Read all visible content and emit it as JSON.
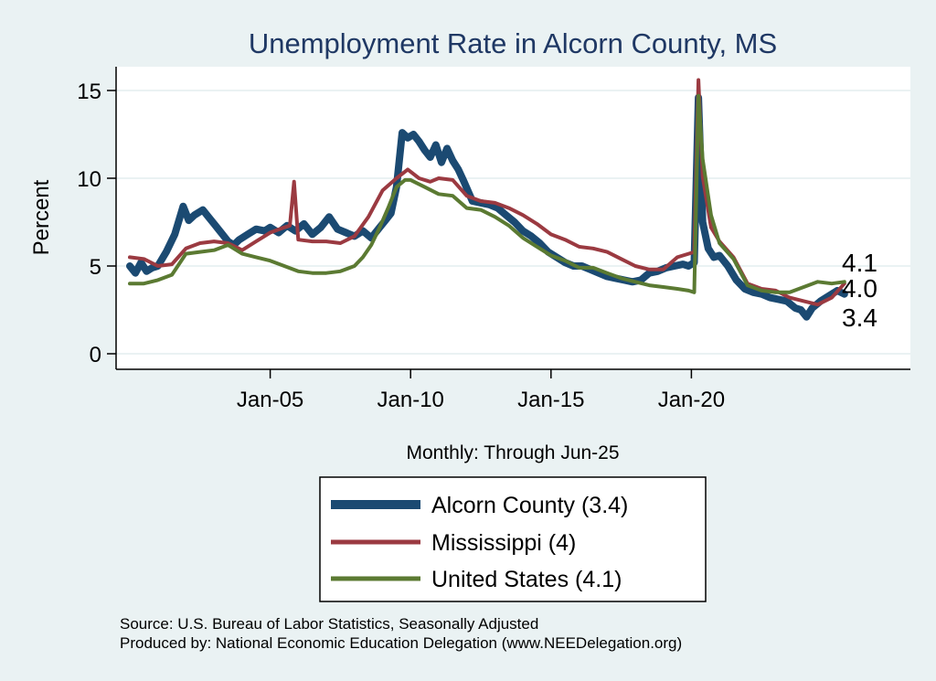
{
  "chart_data": {
    "type": "line",
    "title": "Unemployment Rate in Alcorn  County, MS",
    "ylabel": "Percent",
    "xlabel": "Monthly: Through Jun-25",
    "ylim": [
      0,
      16
    ],
    "yticks": [
      0,
      5,
      10,
      15
    ],
    "xlim": [
      2000.0,
      2028.5
    ],
    "xticks": [
      {
        "value": 2005.0,
        "label": "Jan-05"
      },
      {
        "value": 2010.0,
        "label": "Jan-10"
      },
      {
        "value": 2015.0,
        "label": "Jan-15"
      },
      {
        "value": 2020.0,
        "label": "Jan-20"
      }
    ],
    "grid": true,
    "legend_position": "bottom-center",
    "series": [
      {
        "name": "Alcorn  County",
        "legend_label": "Alcorn  County (3.4)",
        "color": "#1b4a72",
        "x": [
          2000.0,
          2000.2,
          2000.4,
          2000.6,
          2000.8,
          2001.0,
          2001.3,
          2001.6,
          2001.9,
          2002.1,
          2002.3,
          2002.6,
          2002.8,
          2003.0,
          2003.3,
          2003.5,
          2003.7,
          2003.9,
          2004.2,
          2004.5,
          2004.8,
          2005.0,
          2005.3,
          2005.6,
          2005.9,
          2006.2,
          2006.5,
          2006.8,
          2007.1,
          2007.4,
          2007.7,
          2008.0,
          2008.3,
          2008.6,
          2008.9,
          2009.1,
          2009.3,
          2009.5,
          2009.7,
          2009.9,
          2010.1,
          2010.3,
          2010.5,
          2010.7,
          2010.9,
          2011.1,
          2011.3,
          2011.5,
          2011.7,
          2011.9,
          2012.2,
          2012.5,
          2012.8,
          2013.1,
          2013.4,
          2013.7,
          2014.0,
          2014.3,
          2014.6,
          2014.9,
          2015.2,
          2015.5,
          2015.8,
          2016.1,
          2016.4,
          2016.7,
          2017.0,
          2017.3,
          2017.6,
          2017.9,
          2018.2,
          2018.5,
          2018.8,
          2019.1,
          2019.4,
          2019.7,
          2019.9,
          2020.1,
          2020.25,
          2020.4,
          2020.6,
          2020.8,
          2021.0,
          2021.3,
          2021.6,
          2021.9,
          2022.2,
          2022.5,
          2022.8,
          2023.1,
          2023.4,
          2023.7,
          2023.9,
          2024.1,
          2024.3,
          2024.6,
          2024.9,
          2025.2,
          2025.45
        ],
        "values": [
          5.0,
          4.6,
          5.2,
          4.7,
          4.9,
          5.0,
          5.8,
          6.8,
          8.4,
          7.6,
          7.9,
          8.2,
          7.8,
          7.4,
          6.8,
          6.4,
          6.2,
          6.5,
          6.8,
          7.1,
          7.0,
          7.2,
          6.9,
          7.3,
          7.0,
          7.4,
          6.8,
          7.2,
          7.8,
          7.1,
          6.9,
          6.7,
          7.0,
          6.6,
          7.2,
          7.6,
          8.0,
          9.5,
          12.6,
          12.3,
          12.5,
          12.1,
          11.6,
          11.2,
          11.9,
          10.9,
          11.7,
          11.0,
          10.5,
          9.8,
          8.7,
          8.6,
          8.5,
          8.3,
          7.9,
          7.5,
          7.0,
          6.7,
          6.3,
          5.8,
          5.5,
          5.2,
          5.0,
          5.0,
          4.8,
          4.6,
          4.4,
          4.3,
          4.2,
          4.1,
          4.2,
          4.6,
          4.7,
          4.9,
          5.0,
          5.1,
          5.0,
          5.2,
          14.6,
          7.5,
          6.0,
          5.5,
          5.6,
          5.0,
          4.2,
          3.7,
          3.5,
          3.4,
          3.2,
          3.1,
          3.0,
          2.6,
          2.5,
          2.1,
          2.6,
          3.0,
          3.3,
          3.6,
          3.4
        ]
      },
      {
        "name": "Mississippi",
        "legend_label": "Mississippi (4)",
        "color": "#9b3a41",
        "x": [
          2000.0,
          2000.5,
          2001.0,
          2001.5,
          2002.0,
          2002.5,
          2003.0,
          2003.5,
          2004.0,
          2004.5,
          2005.0,
          2005.5,
          2005.7,
          2005.85,
          2006.0,
          2006.5,
          2007.0,
          2007.5,
          2008.0,
          2008.5,
          2009.0,
          2009.5,
          2009.9,
          2010.3,
          2010.7,
          2011.0,
          2011.5,
          2012.0,
          2012.5,
          2013.0,
          2013.5,
          2014.0,
          2014.5,
          2015.0,
          2015.5,
          2016.0,
          2016.5,
          2017.0,
          2017.5,
          2018.0,
          2018.5,
          2019.0,
          2019.5,
          2019.9,
          2020.1,
          2020.25,
          2020.4,
          2020.7,
          2021.0,
          2021.5,
          2022.0,
          2022.5,
          2023.0,
          2023.5,
          2024.0,
          2024.5,
          2025.0,
          2025.45
        ],
        "values": [
          5.5,
          5.4,
          5.0,
          5.1,
          6.0,
          6.3,
          6.4,
          6.3,
          5.9,
          6.4,
          6.9,
          7.2,
          7.3,
          9.8,
          6.5,
          6.4,
          6.4,
          6.3,
          6.7,
          7.8,
          9.3,
          10.0,
          10.5,
          10.0,
          9.8,
          10.0,
          9.9,
          9.0,
          8.7,
          8.6,
          8.3,
          7.9,
          7.4,
          6.8,
          6.5,
          6.1,
          6.0,
          5.8,
          5.4,
          5.0,
          4.8,
          4.8,
          5.5,
          5.7,
          5.8,
          15.6,
          10.1,
          7.2,
          6.4,
          5.5,
          4.0,
          3.7,
          3.6,
          3.2,
          3.0,
          2.8,
          3.2,
          4.0
        ]
      },
      {
        "name": "United States",
        "legend_label": "United States (4.1)",
        "color": "#5b7a32",
        "x": [
          2000.0,
          2000.5,
          2001.0,
          2001.5,
          2002.0,
          2002.5,
          2003.0,
          2003.5,
          2004.0,
          2004.5,
          2005.0,
          2005.5,
          2006.0,
          2006.5,
          2007.0,
          2007.5,
          2008.0,
          2008.3,
          2008.6,
          2008.9,
          2009.2,
          2009.5,
          2009.8,
          2010.0,
          2010.5,
          2011.0,
          2011.5,
          2012.0,
          2012.5,
          2013.0,
          2013.5,
          2014.0,
          2014.5,
          2015.0,
          2015.5,
          2016.0,
          2016.5,
          2017.0,
          2017.5,
          2018.0,
          2018.5,
          2019.0,
          2019.5,
          2019.9,
          2020.1,
          2020.25,
          2020.4,
          2020.7,
          2021.0,
          2021.5,
          2022.0,
          2022.5,
          2023.0,
          2023.5,
          2024.0,
          2024.5,
          2025.0,
          2025.45
        ],
        "values": [
          4.0,
          4.0,
          4.2,
          4.5,
          5.7,
          5.8,
          5.9,
          6.2,
          5.7,
          5.5,
          5.3,
          5.0,
          4.7,
          4.6,
          4.6,
          4.7,
          5.0,
          5.5,
          6.2,
          7.2,
          8.3,
          9.5,
          9.9,
          9.9,
          9.5,
          9.1,
          9.0,
          8.3,
          8.2,
          7.8,
          7.3,
          6.6,
          6.1,
          5.6,
          5.3,
          4.9,
          4.9,
          4.6,
          4.3,
          4.1,
          3.9,
          3.8,
          3.7,
          3.6,
          3.5,
          14.7,
          11.1,
          7.9,
          6.3,
          5.4,
          3.9,
          3.6,
          3.5,
          3.5,
          3.8,
          4.1,
          4.0,
          4.1
        ]
      }
    ],
    "end_labels": [
      "4.1",
      "4.0",
      "3.4"
    ]
  },
  "source": {
    "line1": "Source: U.S. Bureau of Labor Statistics, Seasonally Adjusted",
    "line2": "Produced by: National Economic Education Delegation (www.NEEDelegation.org)"
  }
}
